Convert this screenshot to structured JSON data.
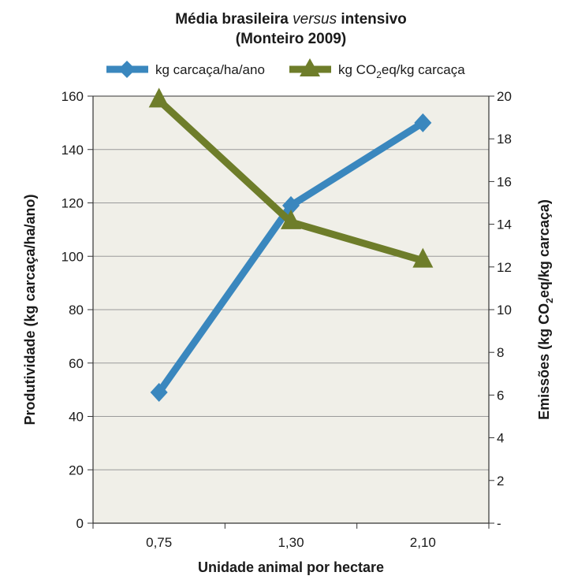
{
  "chart_data": {
    "type": "line",
    "title_main": "Média brasileira ",
    "title_italic": "versus",
    "title_rest": " intensivo",
    "subtitle": "(Monteiro 2009)",
    "categories": [
      "0,75",
      "1,30",
      "2,10"
    ],
    "xlabel": "Unidade animal por hectare",
    "ylabel_left": "Produtividade (kg carcaça/ha/ano)",
    "ylabel_right_pre": "Emissões (kg CO",
    "ylabel_right_sub": "2",
    "ylabel_right_post": "eq/kg carcaça)",
    "ylim_left": [
      0,
      160
    ],
    "yticks_left": [
      "0",
      "20",
      "40",
      "60",
      "80",
      "100",
      "120",
      "140",
      "160"
    ],
    "ylim_right": [
      0,
      20
    ],
    "yticks_right": [
      "-",
      "2",
      "4",
      "6",
      "8",
      "10",
      "12",
      "14",
      "16",
      "18",
      "20"
    ],
    "grid": true,
    "legend_position": "top",
    "series": [
      {
        "name": "kg carcaça/ha/ano",
        "axis": "left",
        "marker": "diamond",
        "color": "#3a87be",
        "values": [
          49,
          119,
          150
        ]
      },
      {
        "name_pre": "kg CO",
        "name_sub": "2",
        "name_post": "eq/kg carcaça",
        "axis": "right",
        "marker": "triangle",
        "color": "#6e7d2a",
        "values": [
          19.8,
          14.1,
          12.3
        ]
      }
    ]
  }
}
